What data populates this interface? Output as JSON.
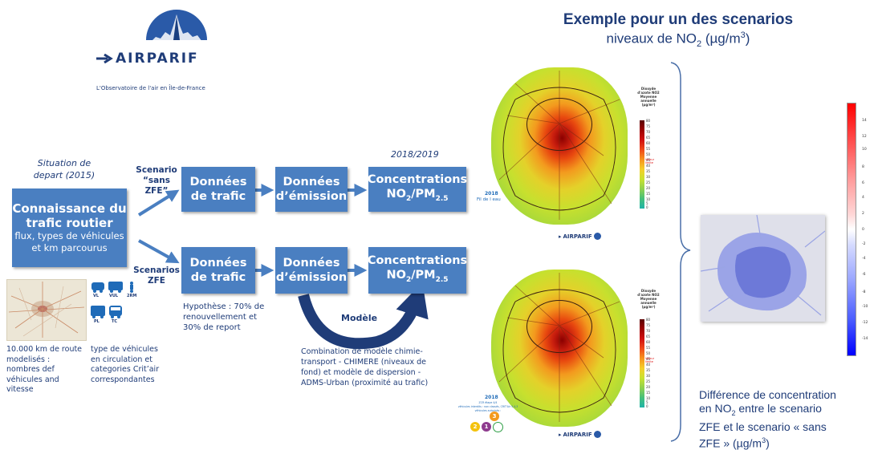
{
  "logo": {
    "brand": "AIRPARIF",
    "tagline": "L'Observatoire de l'air en Île-de-France"
  },
  "header": {
    "title": "Exemple pour un des scenarios",
    "subtitle_pre": "niveaux de NO",
    "subtitle_sub": "2",
    "subtitle_post": " (µg/m",
    "subtitle_sup": "3",
    "subtitle_end": ")"
  },
  "situation": {
    "line1": "Situation de",
    "line2": "depart (2015)"
  },
  "year_label": "2018/2019",
  "knowledge_box": {
    "title_line1": "Connaissance du",
    "title_line2": "trafic routier",
    "sub_line1": "flux, types de véhicules",
    "sub_line2": "et km parcourus"
  },
  "scenario_top": {
    "line1": "Scenario",
    "line2": "“sans ZFE”"
  },
  "scenario_bottom": {
    "line1": "Scenarios",
    "line2": "ZFE"
  },
  "boxes": {
    "traffic_line1": "Données",
    "traffic_line2": "de trafic",
    "emission_line1": "Données",
    "emission_line2": "d’émission",
    "conc_line1": "Concentrations",
    "conc_no2": "NO",
    "conc_no2_sub": "2",
    "conc_pm": "/PM",
    "conc_pm_sub": "2.5"
  },
  "hypothesis": {
    "line1": "Hypothèse : 70% de",
    "line2": "renouvellement et",
    "line3": "30% de report"
  },
  "model_label": "Modèle",
  "model_desc": {
    "line1": "Combination de modèle chimie-",
    "line2": "transport - CHIMERE (niveaux de",
    "line3": "fond) et modèle de dispersion -",
    "line4": "ADMS-Urban (proximité au trafic)"
  },
  "road_note": {
    "line1": "10.000 km de route",
    "line2": "modelisés :",
    "line3": "nombres def",
    "line4": "véhicules and",
    "line5": "vitesse"
  },
  "vehicle_note": {
    "line1": "type de véhicules",
    "line2": "en circulation et",
    "line3": "categories Crit’air",
    "line4": "correspondantes"
  },
  "vehicle_icons": {
    "vl": "VL",
    "vul": "VUL",
    "twowheel": "2RM",
    "pl": "PL",
    "tc": "TC"
  },
  "map1": {
    "year": "2018",
    "label": "Fil de l eau",
    "legend_title1": "Dioxyde",
    "legend_title2": "d'azote NO2",
    "legend_sub1": "Moyenne",
    "legend_sub2": "annuelle",
    "legend_unit": "(µg/m³)",
    "limit": "Valeur limite"
  },
  "map2": {
    "year": "2018",
    "caption1": "ZCR étape 4/4",
    "caption2": "véhicules interdits : non classés, CRIT'Air 5,4,3",
    "caption3": "véhicules autorisés :",
    "legend_title1": "Dioxyde",
    "legend_title2": "d'azote NO2",
    "legend_sub1": "Moyenne",
    "legend_sub2": "annuelle",
    "legend_unit": "(µg/m³)",
    "limit": "Valeur limite",
    "badges": [
      "2",
      "1",
      "3"
    ]
  },
  "legend_ticks": [
    "80",
    "75",
    "70",
    "65",
    "60",
    "55",
    "50",
    "45",
    "40",
    "35",
    "30",
    "25",
    "20",
    "15",
    "10",
    "5",
    "0"
  ],
  "diff_ticks": [
    "14",
    "12",
    "10",
    "8",
    "6",
    "4",
    "2",
    "0",
    "-2",
    "-4",
    "-6",
    "-8",
    "-10",
    "-12",
    "-14"
  ],
  "diff_caption": {
    "line1": "Différence de concentration",
    "line2_pre": "en NO",
    "line2_sub": "2",
    "line2_post": " entre le scenario",
    "line3": "ZFE et le scenario « sans",
    "line4_pre": "ZFE » (µg/m",
    "line4_sup": "3",
    "line4_post": ")"
  },
  "colors": {
    "box_blue": "#4a7fc1",
    "arrow_blue": "#4a7fc1",
    "navy": "#1f3c78",
    "brace": "#4a6fa8",
    "model_arrow": "#1f3c78"
  }
}
